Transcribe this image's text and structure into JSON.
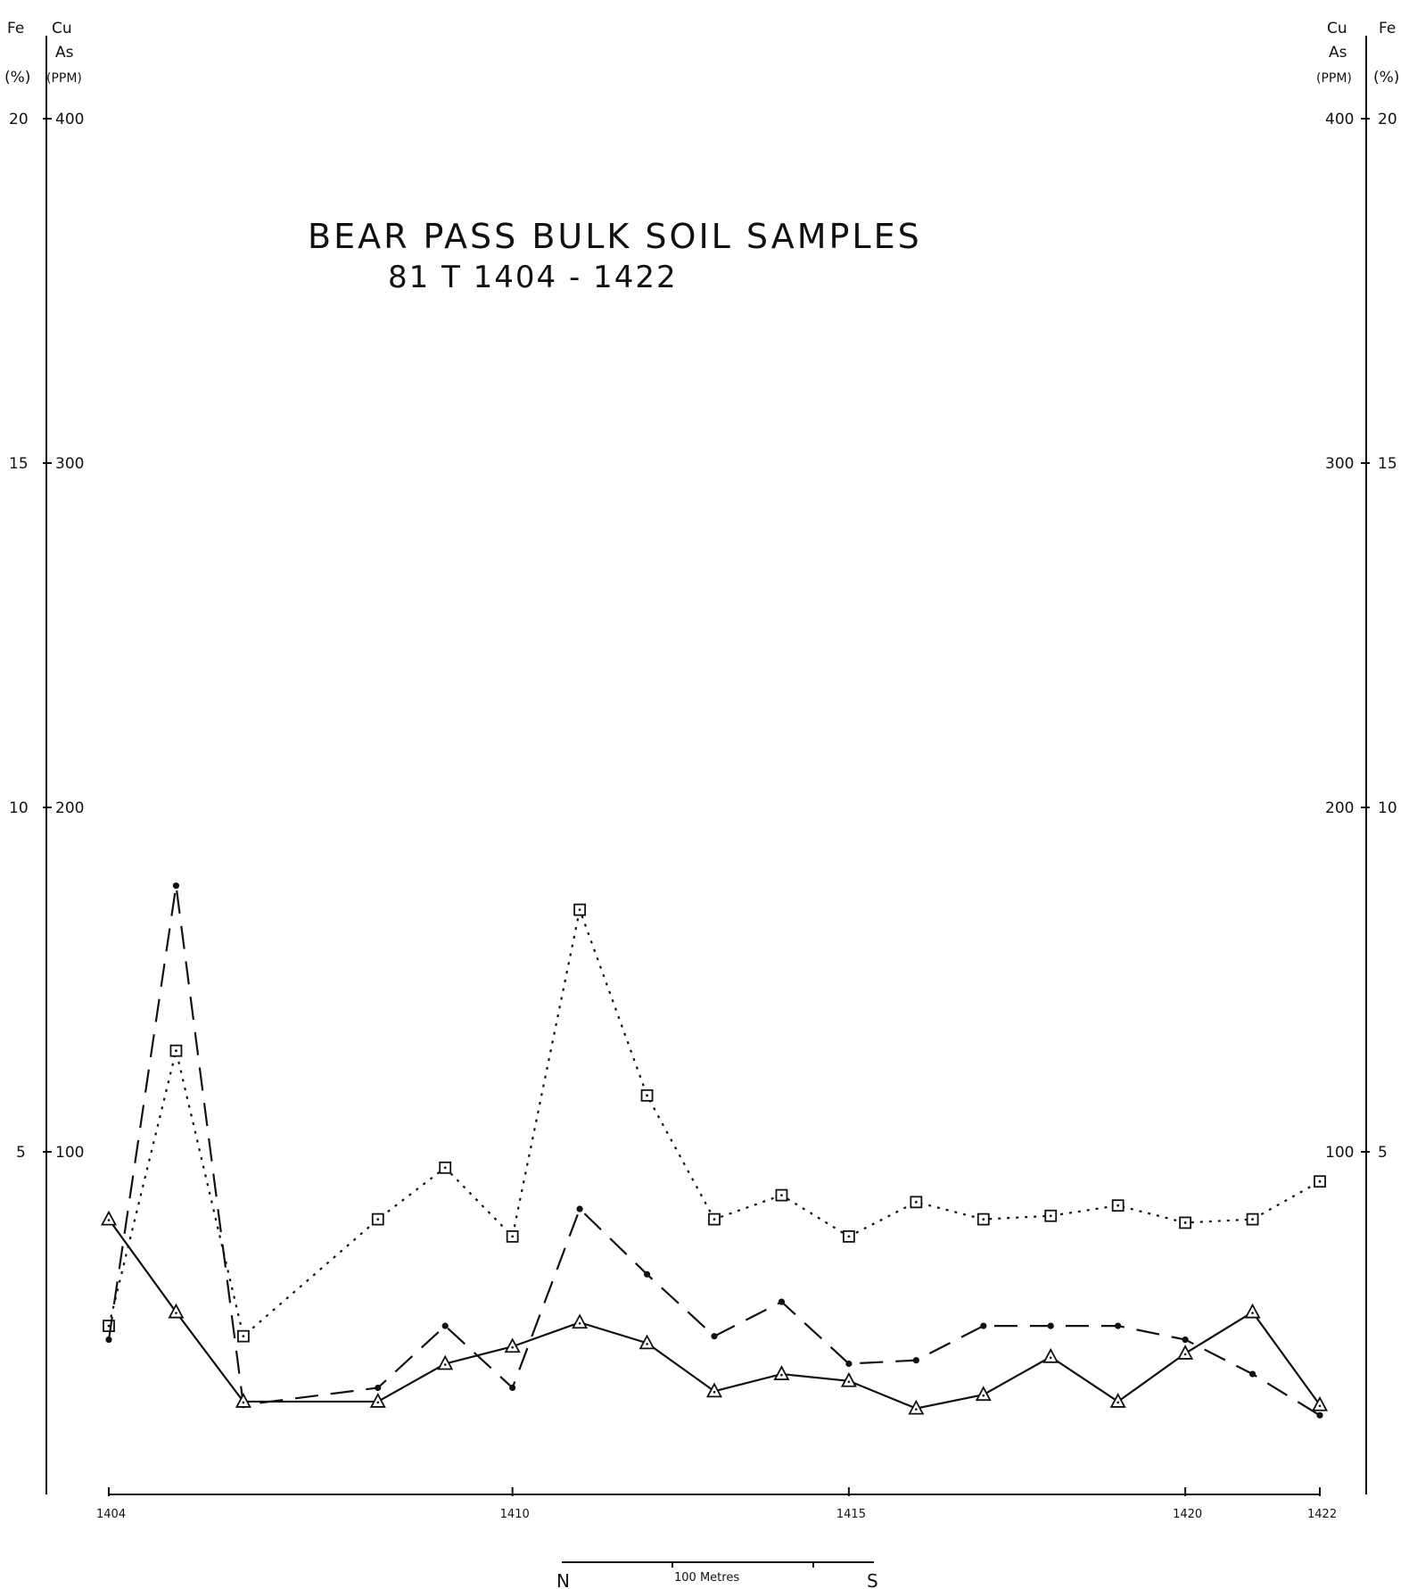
{
  "chart_data": {
    "type": "line",
    "title": "BEAR PASS BULK SOIL SAMPLES",
    "subtitle": "81 T 1404 - 1422",
    "left_axis": {
      "outer_label": "Fe",
      "outer_unit": "(%)",
      "inner_label": [
        "Cu",
        "As"
      ],
      "inner_unit": "(PPM)",
      "fe_ticks": [
        "20",
        "15",
        "10",
        "5"
      ],
      "ppm_ticks": [
        "400",
        "300",
        "200",
        "100"
      ]
    },
    "right_axis": {
      "outer_label": "Fe",
      "outer_unit": "(%)",
      "inner_label": [
        "Cu",
        "As"
      ],
      "inner_unit": "(PPM)",
      "fe_ticks": [
        "20",
        "15",
        "10",
        "5"
      ],
      "ppm_ticks": [
        "400",
        "300",
        "200",
        "100"
      ]
    },
    "ylim_ppm": [
      0,
      400
    ],
    "ylim_fe": [
      0,
      20
    ],
    "x": [
      1404,
      1405,
      1406,
      1407,
      1408,
      1409,
      1410,
      1411,
      1412,
      1413,
      1414,
      1415,
      1416,
      1417,
      1418,
      1419,
      1420,
      1421,
      1422
    ],
    "x_tick_labels": [
      {
        "x": 1404,
        "label": "1404"
      },
      {
        "x": 1410,
        "label": "1410"
      },
      {
        "x": 1415,
        "label": "1415"
      },
      {
        "x": 1420,
        "label": "1420"
      },
      {
        "x": 1422,
        "label": "1422"
      }
    ],
    "series": [
      {
        "marker": "square",
        "dash": "dotted",
        "values": [
          49,
          129,
          46,
          null,
          80,
          95,
          75,
          170,
          116,
          80,
          87,
          75,
          85,
          80,
          81,
          84,
          79,
          80,
          91
        ]
      },
      {
        "marker": "dot",
        "dash": "long-dash",
        "values": [
          45,
          177,
          26,
          null,
          31,
          49,
          31,
          83,
          64,
          46,
          56,
          38,
          39,
          49,
          49,
          49,
          45,
          35,
          23
        ]
      },
      {
        "marker": "triangle",
        "dash": "solid",
        "values": [
          80,
          53,
          27,
          null,
          27,
          38,
          43,
          50,
          44,
          30,
          35,
          33,
          25,
          29,
          40,
          27,
          41,
          53,
          26
        ]
      }
    ],
    "scale_bar": {
      "left": "N",
      "label": "100 Metres",
      "right": "S"
    },
    "grid": false
  }
}
